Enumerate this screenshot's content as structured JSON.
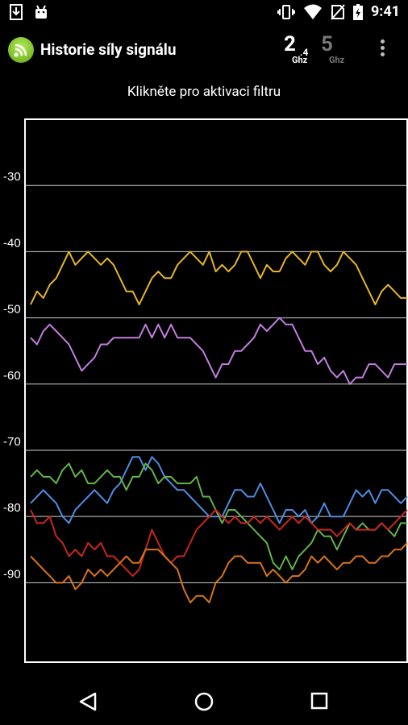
{
  "app_title": "Historie síly signálu",
  "band_2_4": {
    "main": "2",
    "decimal": ".4",
    "unit": "Ghz"
  },
  "band_5": {
    "main": "5",
    "unit": "Ghz"
  },
  "status_time": "9:41",
  "filter_hint": "Klikněte pro aktivaci filtru",
  "icons": [
    "download-icon",
    "android-icon",
    "vibrate-icon",
    "wifi-icon",
    "no-sim-icon",
    "battery-icon",
    "app-logo-icon",
    "overflow-menu-icon",
    "back-icon",
    "home-icon",
    "recents-icon"
  ],
  "chart_data": {
    "type": "line",
    "title": "",
    "xlabel": "",
    "ylabel": "",
    "ylim": [
      -102,
      -20
    ],
    "y_ticks": [
      -30,
      -40,
      -50,
      -60,
      -70,
      -80,
      -90
    ],
    "grid": true,
    "x": [
      0,
      1,
      2,
      3,
      4,
      5,
      6,
      7,
      8,
      9,
      10,
      11,
      12,
      13,
      14,
      15,
      16,
      17,
      18,
      19,
      20,
      21,
      22,
      23,
      24,
      25,
      26,
      27,
      28,
      29,
      30,
      31,
      32,
      33,
      34,
      35,
      36,
      37,
      38,
      39,
      40,
      41,
      42,
      43,
      44,
      45,
      46,
      47,
      48,
      49,
      50,
      51,
      52,
      53,
      54,
      55,
      56,
      57,
      58,
      59
    ],
    "series": [
      {
        "color": "#e6b625",
        "values": [
          -48,
          -46,
          -47,
          -45,
          -44,
          -42,
          -40,
          -42,
          -41,
          -40,
          -41,
          -42,
          -41,
          -42,
          -44,
          -46,
          -46,
          -48,
          -46,
          -44,
          -43,
          -44,
          -44,
          -42,
          -41,
          -40,
          -41,
          -42,
          -40,
          -43,
          -42,
          -43,
          -42,
          -40,
          -40,
          -42,
          -44,
          -42,
          -43,
          -43,
          -41,
          -40,
          -41,
          -42,
          -40,
          -40,
          -42,
          -43,
          -42,
          -40,
          -41,
          -42,
          -44,
          -46,
          -48,
          -46,
          -45,
          -46,
          -47,
          -47
        ]
      },
      {
        "color": "#c27ee0",
        "values": [
          -53,
          -54,
          -52,
          -51,
          -52,
          -53,
          -54,
          -56,
          -58,
          -57,
          -56,
          -54,
          -54,
          -53,
          -53,
          -53,
          -53,
          -53,
          -51,
          -53,
          -51,
          -53,
          -51,
          -53,
          -53,
          -53,
          -54,
          -55,
          -57,
          -59,
          -57,
          -57,
          -55,
          -55,
          -54,
          -53,
          -51,
          -52,
          -51,
          -50,
          -51,
          -51,
          -53,
          -55,
          -55,
          -57,
          -56,
          -58,
          -59,
          -58,
          -60,
          -59,
          -59,
          -57,
          -57,
          -58,
          -59,
          -57,
          -57,
          -57
        ]
      },
      {
        "color": "#4f8ce0",
        "values": [
          -78,
          -77,
          -76,
          -77,
          -78,
          -80,
          -81,
          -79,
          -78,
          -77,
          -76,
          -77,
          -78,
          -76,
          -75,
          -73,
          -71,
          -71,
          -73,
          -71,
          -72,
          -74,
          -75,
          -76,
          -76,
          -77,
          -78,
          -79,
          -80,
          -80,
          -80,
          -78,
          -76,
          -76,
          -77,
          -77,
          -75,
          -77,
          -79,
          -81,
          -79,
          -79,
          -80,
          -79,
          -81,
          -80,
          -78,
          -80,
          -80,
          -80,
          -78,
          -76,
          -77,
          -76,
          -78,
          -76,
          -76,
          -77,
          -78,
          -77
        ]
      },
      {
        "color": "#63b34a",
        "values": [
          -74,
          -73,
          -74,
          -74,
          -75,
          -73,
          -72,
          -74,
          -73,
          -75,
          -75,
          -74,
          -73,
          -74,
          -74,
          -76,
          -74,
          -74,
          -72,
          -73,
          -75,
          -74,
          -74,
          -75,
          -75,
          -75,
          -74,
          -77,
          -77,
          -79,
          -81,
          -79,
          -79,
          -80,
          -81,
          -82,
          -83,
          -84,
          -87,
          -88,
          -86,
          -88,
          -86,
          -85,
          -84,
          -82,
          -83,
          -83,
          -85,
          -83,
          -81,
          -82,
          -81,
          -82,
          -82,
          -81,
          -82,
          -83,
          -81,
          -81
        ]
      },
      {
        "color": "#c9261c",
        "values": [
          -79,
          -81,
          -81,
          -80,
          -83,
          -84,
          -86,
          -85,
          -86,
          -84,
          -85,
          -84,
          -86,
          -86,
          -87,
          -88,
          -89,
          -88,
          -85,
          -82,
          -84,
          -86,
          -87,
          -86,
          -86,
          -84,
          -82,
          -81,
          -80,
          -79,
          -80,
          -81,
          -80,
          -81,
          -81,
          -80,
          -81,
          -80,
          -81,
          -82,
          -81,
          -80,
          -81,
          -80,
          -81,
          -82,
          -82,
          -82,
          -83,
          -82,
          -81,
          -82,
          -82,
          -82,
          -82,
          -81,
          -82,
          -81,
          -80,
          -79
        ]
      },
      {
        "color": "#d9731c",
        "values": [
          -86,
          -87,
          -88,
          -89,
          -90,
          -90,
          -89,
          -91,
          -90,
          -88,
          -89,
          -88,
          -89,
          -88,
          -87,
          -86,
          -87,
          -87,
          -85,
          -85,
          -85,
          -86,
          -87,
          -88,
          -91,
          -93,
          -92,
          -92,
          -93,
          -90,
          -89,
          -87,
          -86,
          -86,
          -87,
          -87,
          -87,
          -89,
          -88,
          -89,
          -90,
          -89,
          -89,
          -88,
          -86,
          -87,
          -86,
          -87,
          -88,
          -87,
          -87,
          -86,
          -86,
          -87,
          -87,
          -86,
          -86,
          -85,
          -85,
          -84
        ]
      }
    ]
  }
}
